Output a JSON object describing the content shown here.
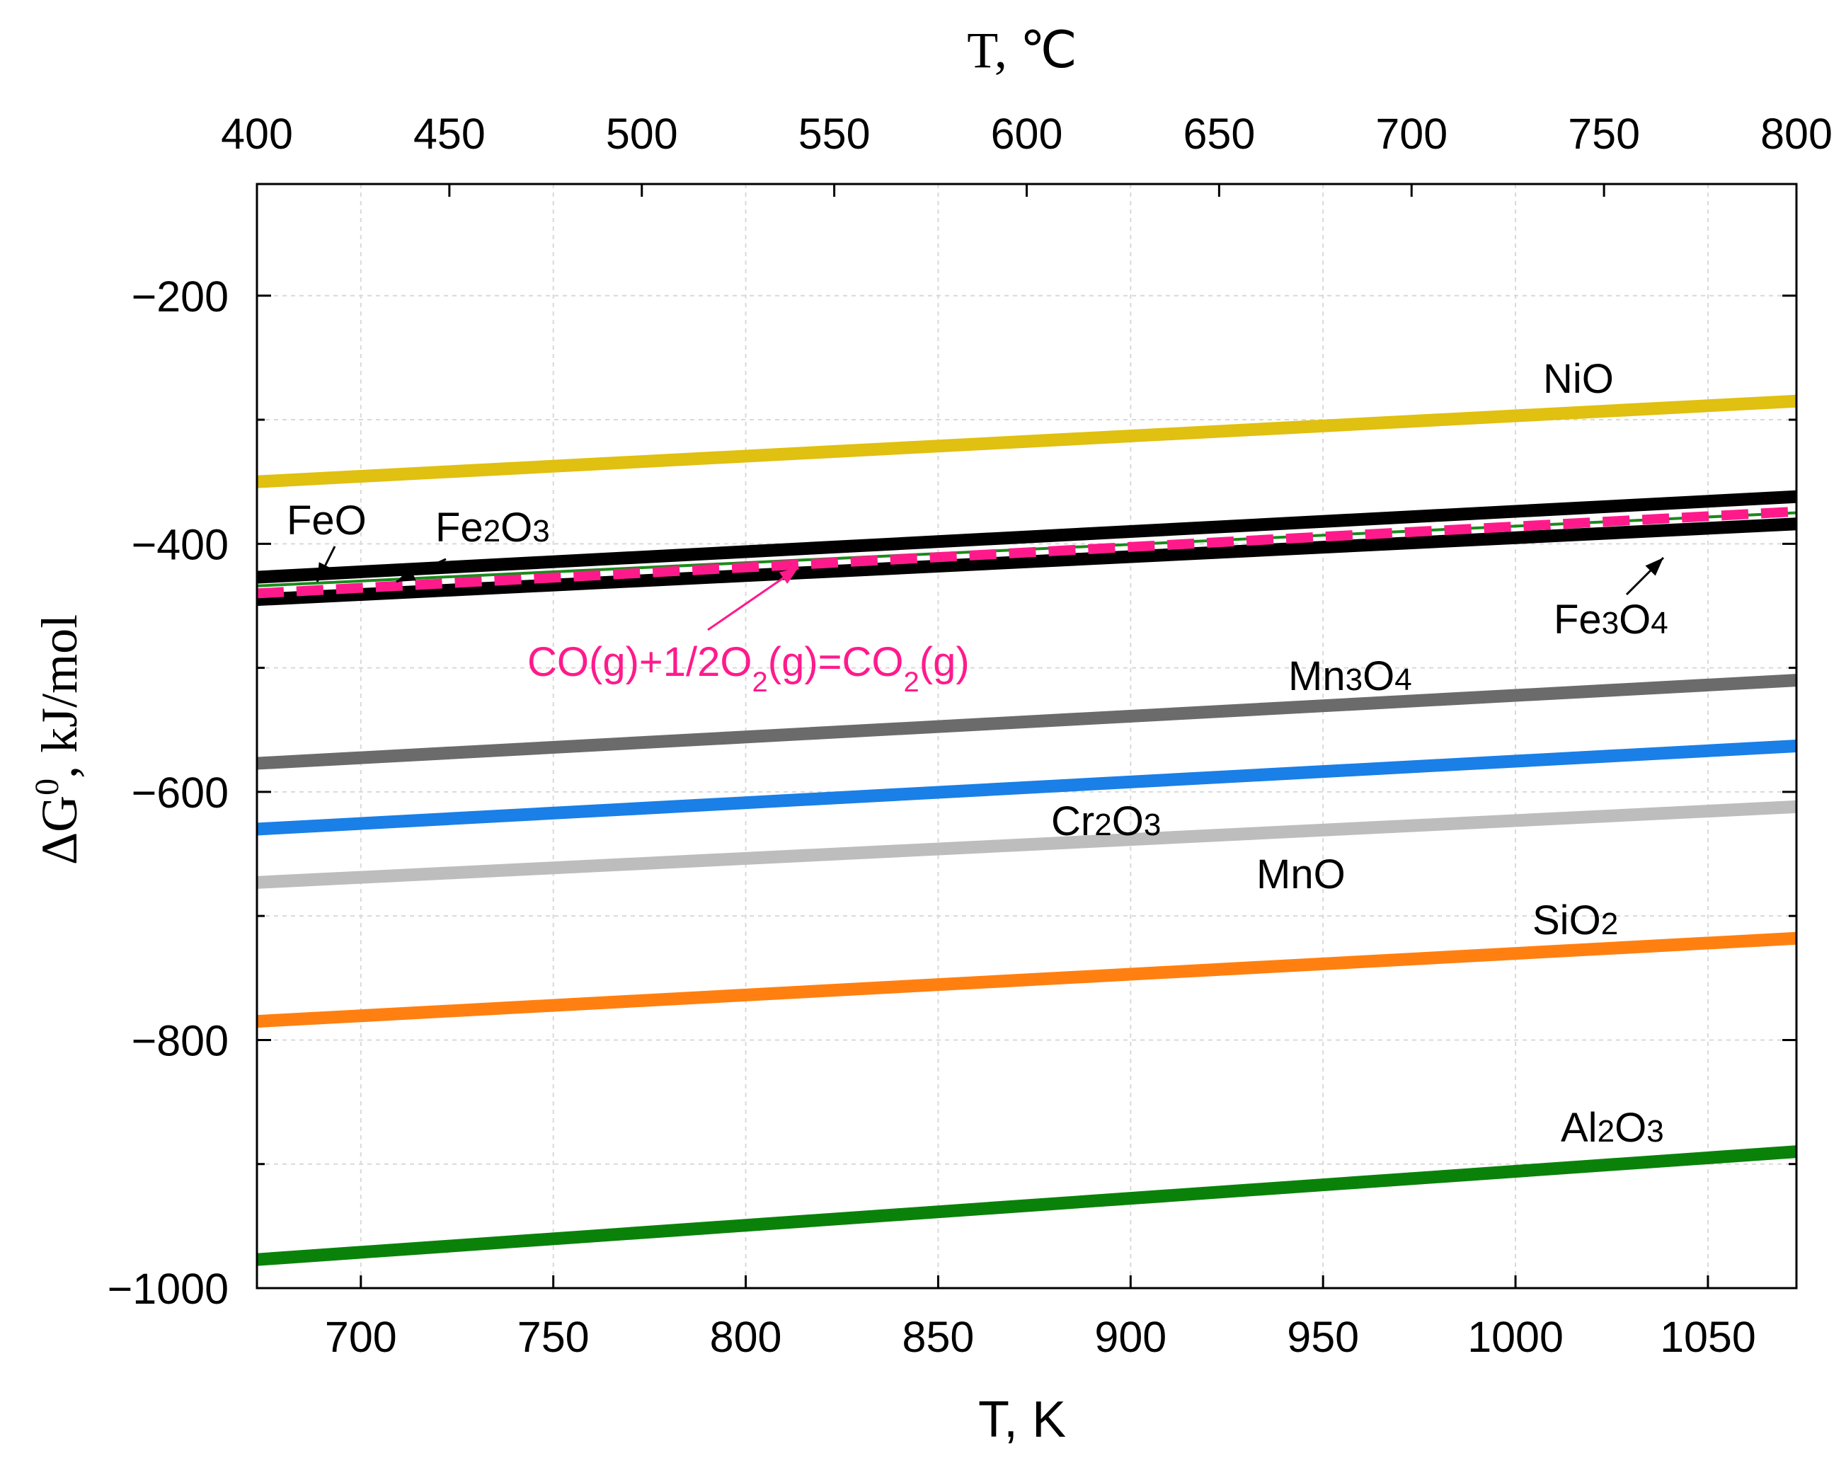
{
  "chart_data": {
    "type": "line",
    "xlabel": "T, K",
    "x2label": "T, ℃",
    "ylabel": "ΔG⁰, kJ/mol",
    "ylabel_parts": {
      "base": "ΔG",
      "sup": "0",
      "rest": ", kJ/mol"
    },
    "xlim": [
      673,
      1073
    ],
    "ylim": [
      -1000,
      -110
    ],
    "x2lim": [
      400,
      800
    ],
    "xticks": [
      700,
      750,
      800,
      850,
      900,
      950,
      1000,
      1050
    ],
    "x2ticks": [
      400,
      450,
      500,
      550,
      600,
      650,
      700,
      750,
      800
    ],
    "yticks_major": [
      -200,
      -400,
      -600,
      -800,
      -1000
    ],
    "yticks_minor": [
      -300,
      -500,
      -700,
      -900
    ],
    "grid": true,
    "series": [
      {
        "name": "NiO",
        "color": "#e0c010",
        "x": [
          673,
          1073
        ],
        "y": [
          -350,
          -285
        ],
        "label_parts": [
          [
            "NiO",
            "n"
          ]
        ]
      },
      {
        "name": "FeO",
        "color": "#000000",
        "x": [
          673,
          1073
        ],
        "y": [
          -427,
          -362
        ],
        "label_parts": [
          [
            "FeO",
            "n"
          ]
        ]
      },
      {
        "name": "Fe2O3",
        "color": "#1a8a1a",
        "x": [
          673,
          1073
        ],
        "y": [
          -434,
          -375
        ],
        "label_parts": [
          [
            "Fe",
            "n"
          ],
          [
            "2",
            "s"
          ],
          [
            "O",
            "n"
          ],
          [
            "3",
            "s"
          ]
        ]
      },
      {
        "name": "Fe3O4",
        "color": "#000000",
        "x": [
          673,
          1073
        ],
        "y": [
          -445,
          -384
        ],
        "label_parts": [
          [
            "Fe",
            "n"
          ],
          [
            "3",
            "s"
          ],
          [
            "O",
            "n"
          ],
          [
            "4",
            "s"
          ]
        ]
      },
      {
        "name": "CO(g)+1/2O2(g)=CO2(g)",
        "color": "#ff1a8c",
        "dashed": true,
        "x": [
          673,
          1073
        ],
        "y": [
          -440,
          -374
        ],
        "label_parts": [
          [
            "CO(g)+1/2O",
            "n"
          ],
          [
            "2",
            "sub"
          ],
          [
            "(g)=CO",
            "n"
          ],
          [
            "2",
            "sub"
          ],
          [
            "(g)",
            "n"
          ]
        ]
      },
      {
        "name": "Mn3O4",
        "color": "#6b6b6b",
        "x": [
          673,
          1073
        ],
        "y": [
          -577,
          -510
        ],
        "label_parts": [
          [
            "Mn",
            "n"
          ],
          [
            "3",
            "s"
          ],
          [
            "O",
            "n"
          ],
          [
            "4",
            "s"
          ]
        ]
      },
      {
        "name": "Cr2O3",
        "color": "#1a7fe6",
        "x": [
          673,
          1073
        ],
        "y": [
          -630,
          -563
        ],
        "label_parts": [
          [
            "Cr",
            "n"
          ],
          [
            "2",
            "s"
          ],
          [
            "O",
            "n"
          ],
          [
            "3",
            "s"
          ]
        ]
      },
      {
        "name": "MnO",
        "color": "#bdbdbd",
        "x": [
          673,
          1073
        ],
        "y": [
          -673,
          -612
        ],
        "label_parts": [
          [
            "MnO",
            "n"
          ]
        ]
      },
      {
        "name": "SiO2",
        "color": "#ff8010",
        "x": [
          673,
          1073
        ],
        "y": [
          -785,
          -718
        ],
        "label_parts": [
          [
            "SiO",
            "n"
          ],
          [
            "2",
            "s"
          ]
        ]
      },
      {
        "name": "Al2O3",
        "color": "#0a820a",
        "x": [
          673,
          1073
        ],
        "y": [
          -977,
          -890
        ],
        "label_parts": [
          [
            "Al",
            "n"
          ],
          [
            "2",
            "s"
          ],
          [
            "O",
            "n"
          ],
          [
            "3",
            "s"
          ]
        ]
      }
    ]
  }
}
